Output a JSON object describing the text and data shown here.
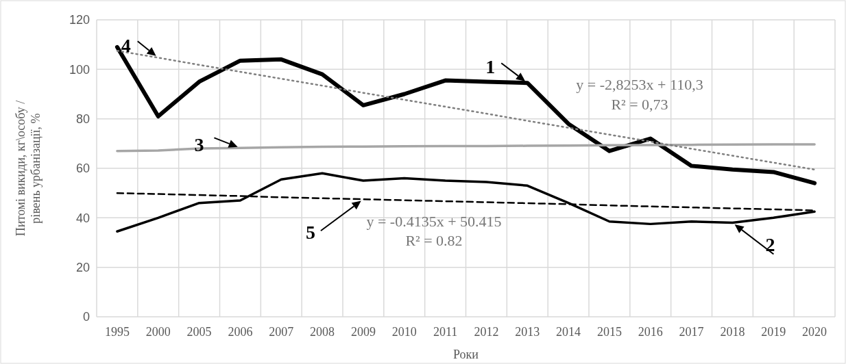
{
  "chart_data": {
    "type": "line",
    "xlabel": "Роки",
    "ylabel": "Питомі викиди, кг\\особу / рівень урбанізації, %",
    "categories": [
      "1995",
      "2000",
      "2005",
      "2006",
      "2007",
      "2008",
      "2009",
      "2010",
      "2011",
      "2012",
      "2013",
      "2014",
      "2015",
      "2016",
      "2017",
      "2018",
      "2019",
      "2020"
    ],
    "series": [
      {
        "color": "#000000",
        "line_style": "solid",
        "values": [
          109,
          81,
          95,
          103.5,
          104,
          98,
          85.5,
          90,
          95.5,
          95,
          94.5,
          78,
          67,
          72,
          61,
          59.5,
          58.5,
          54
        ]
      },
      {
        "color": "#000000",
        "line_style": "solid",
        "values": [
          34.5,
          40,
          46,
          47,
          55.5,
          58,
          55,
          56,
          55,
          54.5,
          53,
          46,
          38.5,
          37.5,
          38.5,
          38,
          40,
          42.5
        ]
      },
      {
        "color": "#a6a6a6",
        "line_style": "solid",
        "values": [
          67,
          67.2,
          68,
          68.2,
          68.5,
          68.7,
          68.8,
          68.9,
          69,
          69,
          69.1,
          69.2,
          69.3,
          69.4,
          69.5,
          69.6,
          69.7,
          69.7
        ]
      },
      {
        "color": "#7f7f7f",
        "line_style": "dotted",
        "values": [
          107.5,
          104.7,
          101.8,
          99,
          96.2,
          93.4,
          90.5,
          87.7,
          84.9,
          82.1,
          79.2,
          76.4,
          73.6,
          70.8,
          67.9,
          65.1,
          62.3,
          59.5
        ]
      },
      {
        "color": "#000000",
        "line_style": "dashed",
        "values": [
          50,
          49.6,
          49.2,
          48.8,
          48.3,
          47.9,
          47.5,
          47.1,
          46.7,
          46.3,
          45.9,
          45.5,
          45,
          44.6,
          44.2,
          43.8,
          43.4,
          43
        ]
      }
    ],
    "ylim": [
      0,
      120
    ],
    "yticks": [
      0,
      20,
      40,
      60,
      80,
      100,
      120
    ],
    "grid": true,
    "marker": "none",
    "annotations": [
      {
        "text": "1",
        "x": "2013",
        "y": 94.5
      },
      {
        "text": "2",
        "x": "2018",
        "y": 38
      },
      {
        "text": "3",
        "x": "2006",
        "y": 68.2
      },
      {
        "text": "4",
        "x": "2000",
        "y": 104.7
      },
      {
        "text": "5",
        "x": "2009",
        "y": 47.5
      },
      "y = -2,8253x + 110,3",
      "R² = 0,73",
      "y = -0.4135x + 50.415",
      "R² = 0.82"
    ]
  }
}
